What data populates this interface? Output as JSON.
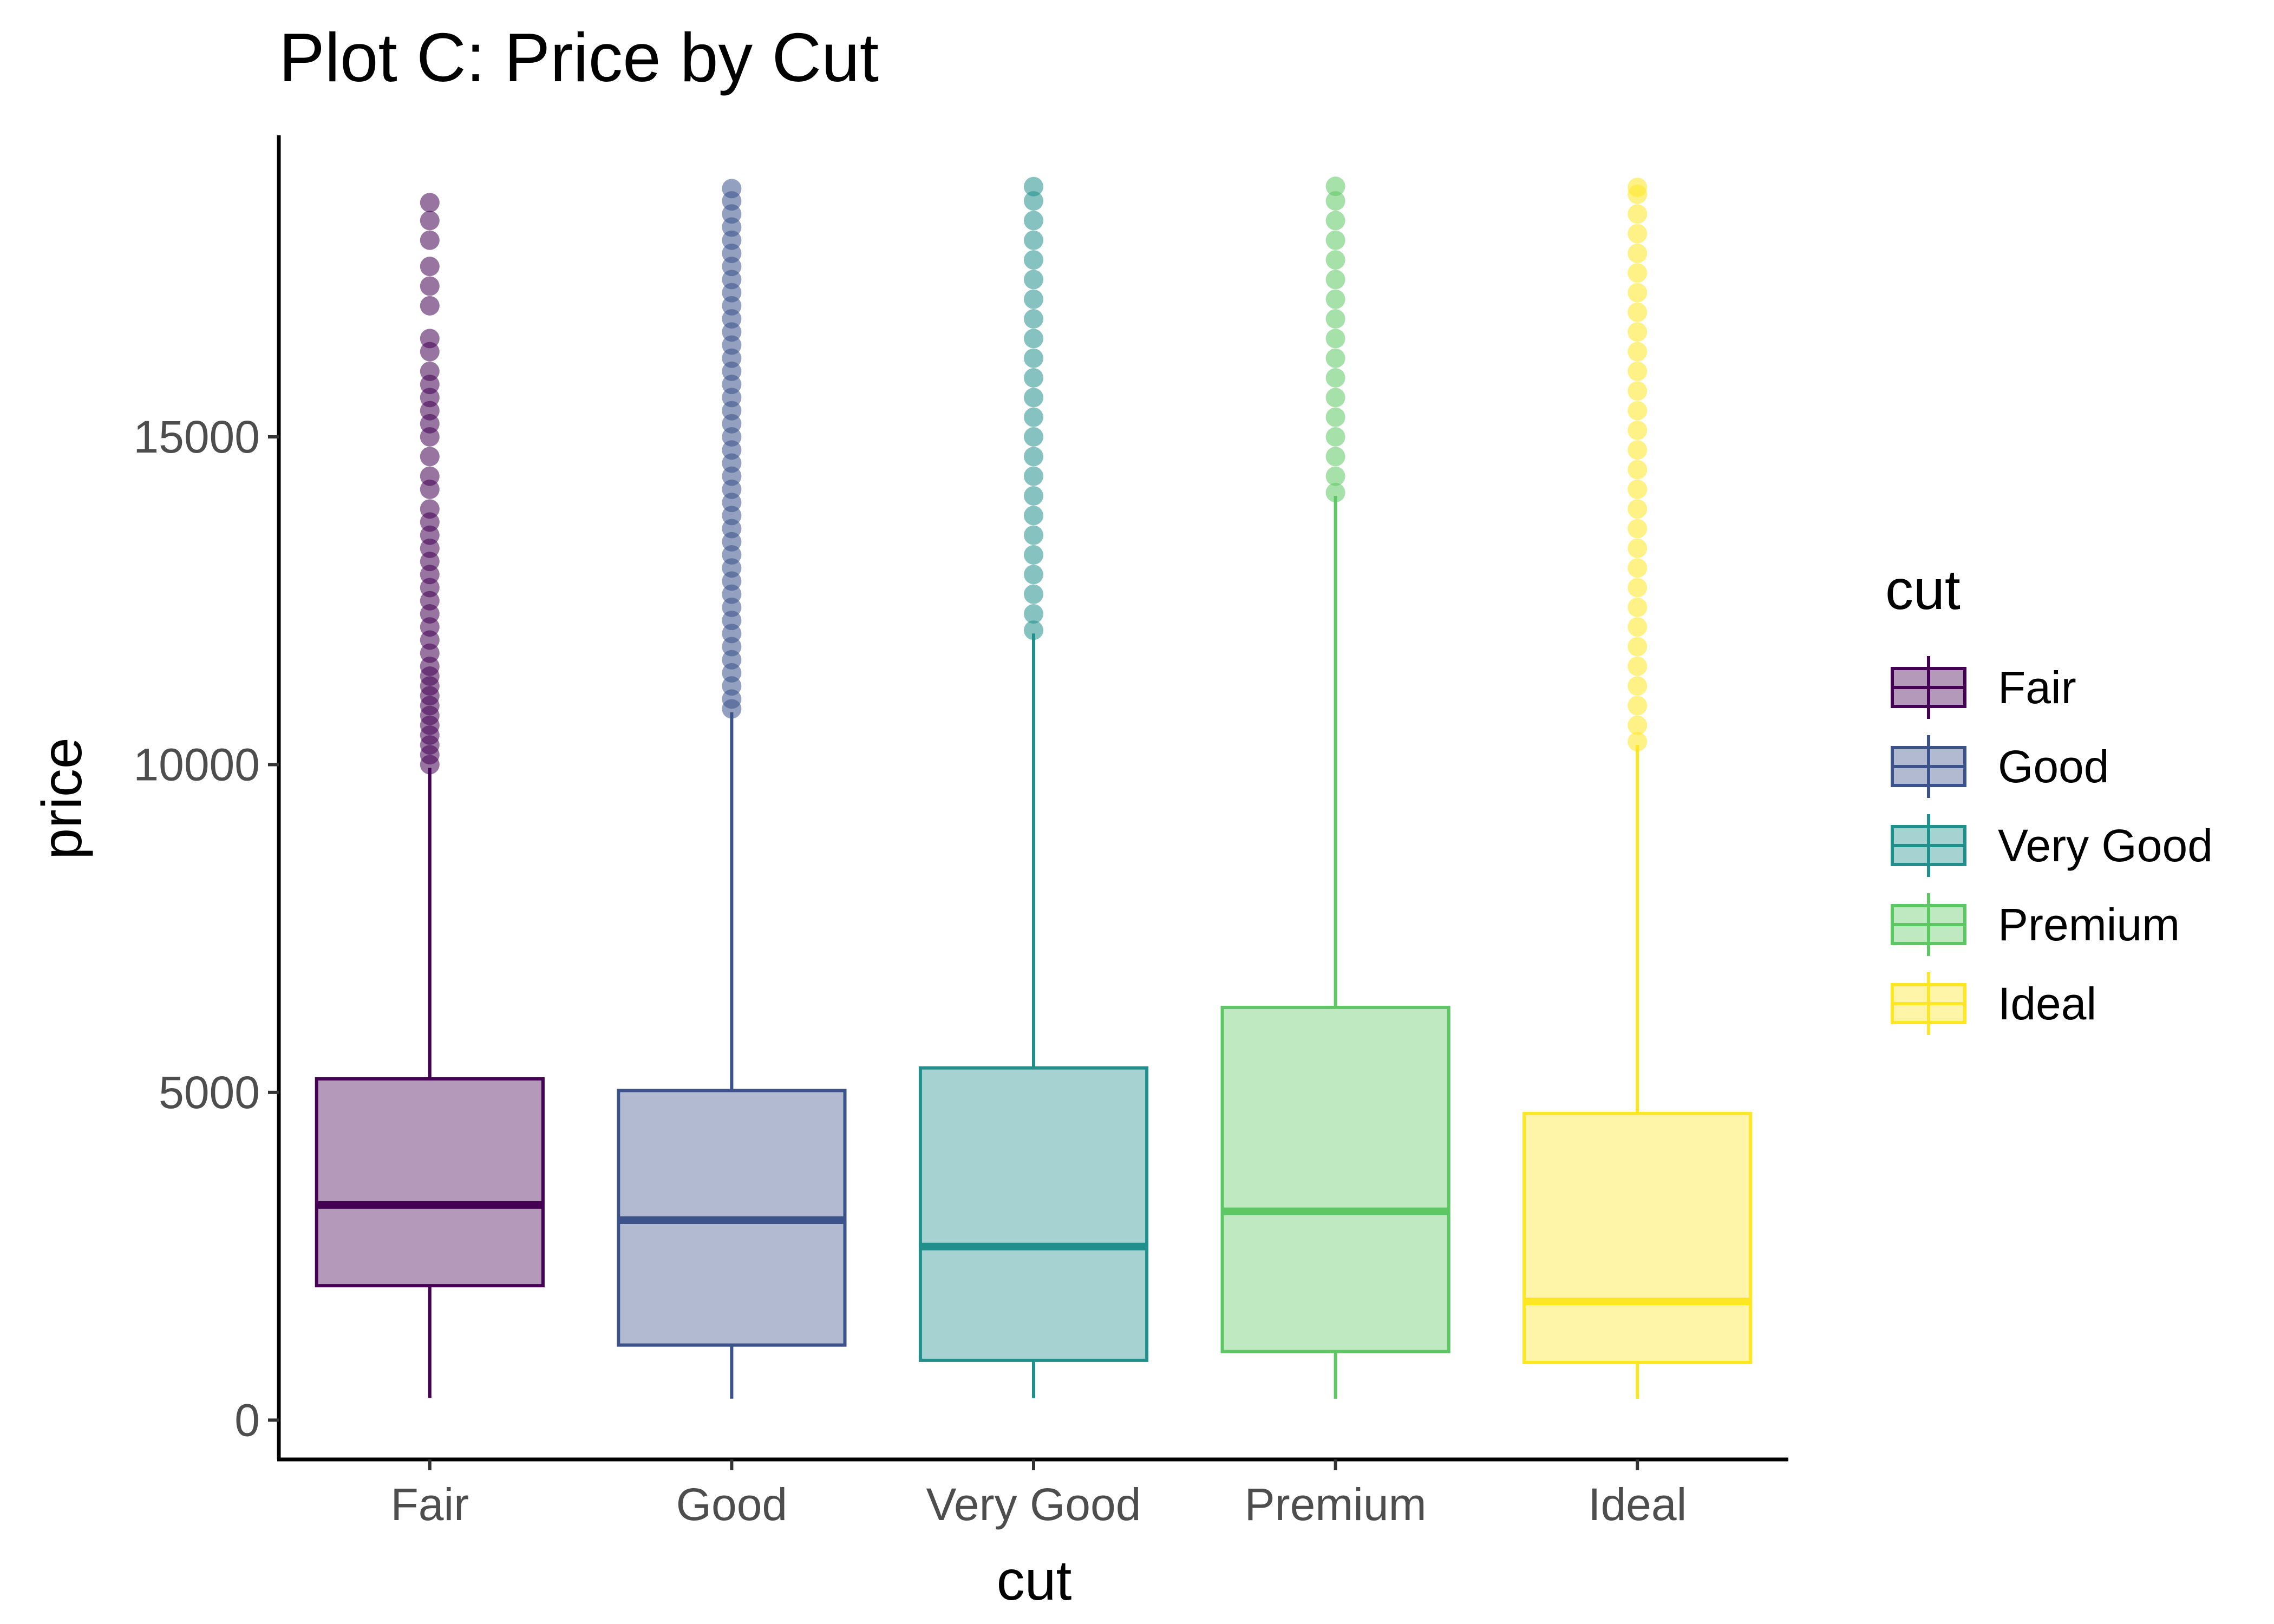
{
  "chart_data": {
    "type": "boxplot",
    "title": "Plot C: Price by Cut",
    "xlabel": "cut",
    "ylabel": "price",
    "ylim": [
      -600,
      19600
    ],
    "yticks": [
      0,
      5000,
      10000,
      15000
    ],
    "ytick_labels": [
      "0",
      "5000",
      "10000",
      "15000"
    ],
    "categories": [
      "Fair",
      "Good",
      "Very Good",
      "Premium",
      "Ideal"
    ],
    "series": [
      {
        "name": "Fair",
        "color": "#440154",
        "q1": 2050,
        "median": 3282,
        "q3": 5206,
        "whisker_low": 337,
        "whisker_high": 9950,
        "outliers": [
          10000,
          10150,
          10300,
          10450,
          10600,
          10750,
          10900,
          11050,
          11200,
          11350,
          11500,
          11700,
          11900,
          12100,
          12300,
          12500,
          12700,
          12900,
          13100,
          13300,
          13500,
          13700,
          13900,
          14200,
          14400,
          14700,
          15000,
          15200,
          15400,
          15600,
          15800,
          16000,
          16300,
          16500,
          17000,
          17300,
          17600,
          18000,
          18300,
          18574
        ]
      },
      {
        "name": "Good",
        "color": "#3B528B",
        "q1": 1145,
        "median": 3050,
        "q3": 5028,
        "whisker_low": 327,
        "whisker_high": 10800,
        "outliers": [
          10850,
          11000,
          11200,
          11400,
          11600,
          11800,
          12000,
          12200,
          12400,
          12600,
          12800,
          13000,
          13200,
          13400,
          13600,
          13800,
          14000,
          14200,
          14400,
          14600,
          14800,
          15000,
          15200,
          15400,
          15600,
          15800,
          16000,
          16200,
          16400,
          16600,
          16800,
          17000,
          17200,
          17400,
          17600,
          17800,
          18000,
          18200,
          18400,
          18600,
          18788
        ]
      },
      {
        "name": "Very Good",
        "color": "#21908C",
        "q1": 912,
        "median": 2648,
        "q3": 5373,
        "whisker_low": 336,
        "whisker_high": 12000,
        "outliers": [
          12050,
          12300,
          12600,
          12900,
          13200,
          13500,
          13800,
          14100,
          14400,
          14700,
          15000,
          15300,
          15600,
          15900,
          16200,
          16500,
          16800,
          17100,
          17400,
          17700,
          18000,
          18300,
          18600,
          18818
        ]
      },
      {
        "name": "Premium",
        "color": "#5DC863",
        "q1": 1046,
        "median": 3185,
        "q3": 6296,
        "whisker_low": 326,
        "whisker_high": 14100,
        "outliers": [
          14150,
          14400,
          14700,
          15000,
          15300,
          15600,
          15900,
          16200,
          16500,
          16800,
          17100,
          17400,
          17700,
          18000,
          18300,
          18600,
          18823
        ]
      },
      {
        "name": "Ideal",
        "color": "#FDE725",
        "q1": 878,
        "median": 1810,
        "q3": 4678,
        "whisker_low": 326,
        "whisker_high": 10300,
        "outliers": [
          10350,
          10600,
          10900,
          11200,
          11500,
          11800,
          12100,
          12400,
          12700,
          13000,
          13300,
          13600,
          13900,
          14200,
          14500,
          14800,
          15100,
          15400,
          15700,
          16000,
          16300,
          16600,
          16900,
          17200,
          17500,
          17800,
          18100,
          18400,
          18700,
          18806
        ]
      }
    ],
    "legend": {
      "title": "cut",
      "position": "right"
    },
    "grid": false
  }
}
